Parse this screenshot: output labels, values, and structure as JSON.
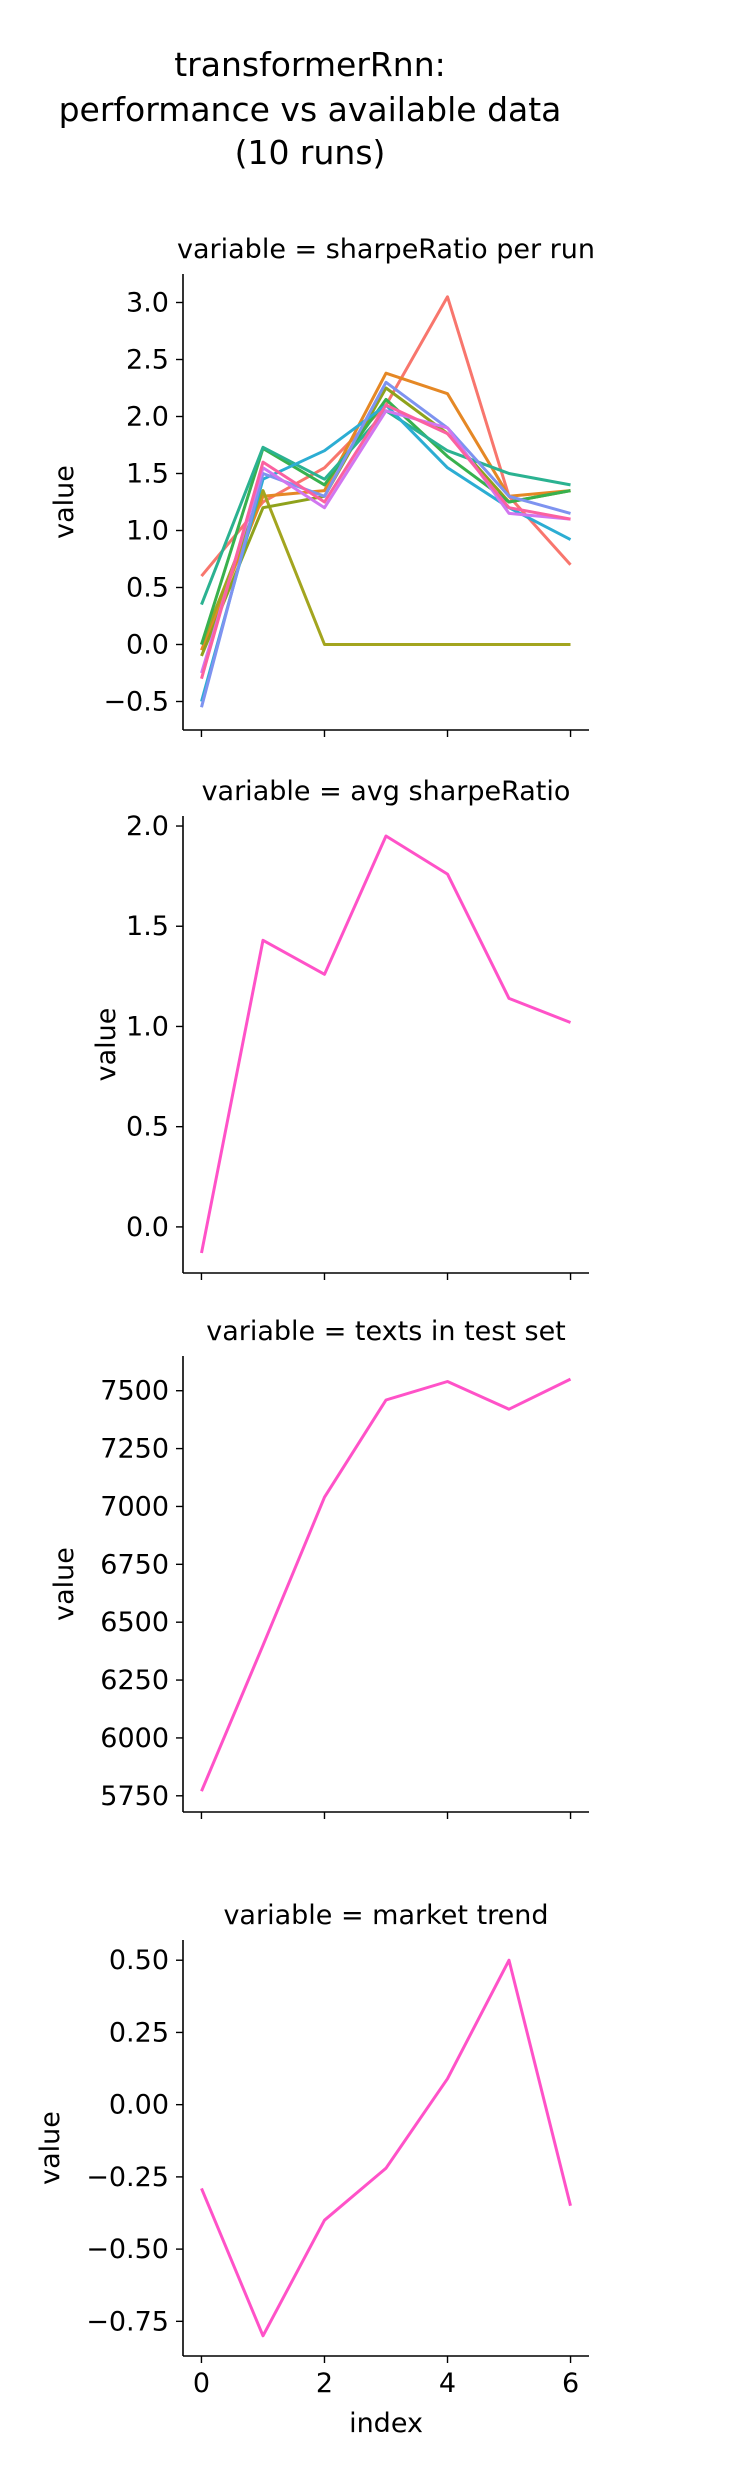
{
  "figure": {
    "title_lines": [
      "transformerRnn:",
      "performance vs available data",
      "(10 runs)"
    ],
    "palette": [
      "#f8766d",
      "#e58825",
      "#a3a51f",
      "#38b14e",
      "#2bb291",
      "#2cadd3",
      "#7e93f0",
      "#d176f0",
      "#f565c9",
      "#fb61a0"
    ],
    "single_series_color": "#ff52c8"
  },
  "chart_data": [
    {
      "type": "line",
      "title": "variable = sharpeRatio per run",
      "xlabel": "",
      "ylabel": "value",
      "x": [
        0,
        1,
        2,
        3,
        4,
        5,
        6
      ],
      "xlim": [
        -0.3,
        6.3
      ],
      "ylim": [
        -0.75,
        3.25
      ],
      "yticks": [
        -0.5,
        0.0,
        0.5,
        1.0,
        1.5,
        2.0,
        2.5,
        3.0
      ],
      "ytick_labels": [
        "−0.5",
        "0.0",
        "0.5",
        "1.0",
        "1.5",
        "2.0",
        "2.5",
        "3.0"
      ],
      "xtick_labels_visible": false,
      "series": [
        {
          "color": "#f8766d",
          "values": [
            0.6,
            1.25,
            1.55,
            2.1,
            3.05,
            1.3,
            0.7
          ]
        },
        {
          "color": "#e58825",
          "values": [
            -0.05,
            1.3,
            1.35,
            2.38,
            2.2,
            1.3,
            1.35
          ]
        },
        {
          "color": "#a3a51f",
          "values": [
            0.0,
            1.35,
            0.0,
            0.0,
            0.0,
            0.0,
            0.0
          ]
        },
        {
          "color": "#8fa21c",
          "values": [
            -0.1,
            1.2,
            1.3,
            2.25,
            1.85,
            1.25,
            1.35
          ]
        },
        {
          "color": "#38b14e",
          "values": [
            0.0,
            1.72,
            1.4,
            2.15,
            1.65,
            1.25,
            1.35
          ]
        },
        {
          "color": "#2bb291",
          "values": [
            0.35,
            1.73,
            1.45,
            2.05,
            1.7,
            1.5,
            1.4
          ]
        },
        {
          "color": "#2cadd3",
          "values": [
            -0.5,
            1.45,
            1.7,
            2.1,
            1.55,
            1.2,
            0.92
          ]
        },
        {
          "color": "#7e93f0",
          "values": [
            -0.55,
            1.5,
            1.3,
            2.3,
            1.9,
            1.3,
            1.15
          ]
        },
        {
          "color": "#d176f0",
          "values": [
            -0.25,
            1.55,
            1.2,
            2.05,
            1.9,
            1.15,
            1.1
          ]
        },
        {
          "color": "#fb61a0",
          "values": [
            -0.3,
            1.6,
            1.25,
            2.1,
            1.85,
            1.2,
            1.1
          ]
        }
      ]
    },
    {
      "type": "line",
      "title": "variable = avg sharpeRatio",
      "xlabel": "",
      "ylabel": "value",
      "x": [
        0,
        1,
        2,
        3,
        4,
        5,
        6
      ],
      "xlim": [
        -0.3,
        6.3
      ],
      "ylim": [
        -0.23,
        2.05
      ],
      "yticks": [
        0.0,
        0.5,
        1.0,
        1.5,
        2.0
      ],
      "ytick_labels": [
        "0.0",
        "0.5",
        "1.0",
        "1.5",
        "2.0"
      ],
      "xtick_labels_visible": false,
      "series": [
        {
          "color": "#ff52c8",
          "values": [
            -0.13,
            1.43,
            1.26,
            1.95,
            1.76,
            1.14,
            1.02
          ]
        }
      ]
    },
    {
      "type": "line",
      "title": "variable = texts in test set",
      "xlabel": "",
      "ylabel": "value",
      "x": [
        0,
        1,
        2,
        3,
        4,
        5,
        6
      ],
      "xlim": [
        -0.3,
        6.3
      ],
      "ylim": [
        5680,
        7650
      ],
      "yticks": [
        5750,
        6000,
        6250,
        6500,
        6750,
        7000,
        7250,
        7500
      ],
      "ytick_labels": [
        "5750",
        "6000",
        "6250",
        "6500",
        "6750",
        "7000",
        "7250",
        "7500"
      ],
      "xtick_labels_visible": false,
      "series": [
        {
          "color": "#ff52c8",
          "values": [
            5770,
            6400,
            7040,
            7460,
            7540,
            7420,
            7550
          ]
        }
      ]
    },
    {
      "type": "line",
      "title": "variable = market trend",
      "xlabel": "index",
      "ylabel": "value",
      "x": [
        0,
        1,
        2,
        3,
        4,
        5,
        6
      ],
      "xlim": [
        -0.3,
        6.3
      ],
      "ylim": [
        -0.87,
        0.57
      ],
      "yticks": [
        -0.75,
        -0.5,
        -0.25,
        0.0,
        0.25,
        0.5
      ],
      "ytick_labels": [
        "−0.75",
        "−0.50",
        "−0.25",
        "0.00",
        "0.25",
        "0.50"
      ],
      "xticks": [
        0,
        2,
        4,
        6
      ],
      "xtick_labels": [
        "0",
        "2",
        "4",
        "6"
      ],
      "xtick_labels_visible": true,
      "series": [
        {
          "color": "#ff52c8",
          "values": [
            -0.29,
            -0.8,
            -0.4,
            -0.22,
            0.09,
            0.5,
            -0.35
          ]
        }
      ]
    }
  ]
}
